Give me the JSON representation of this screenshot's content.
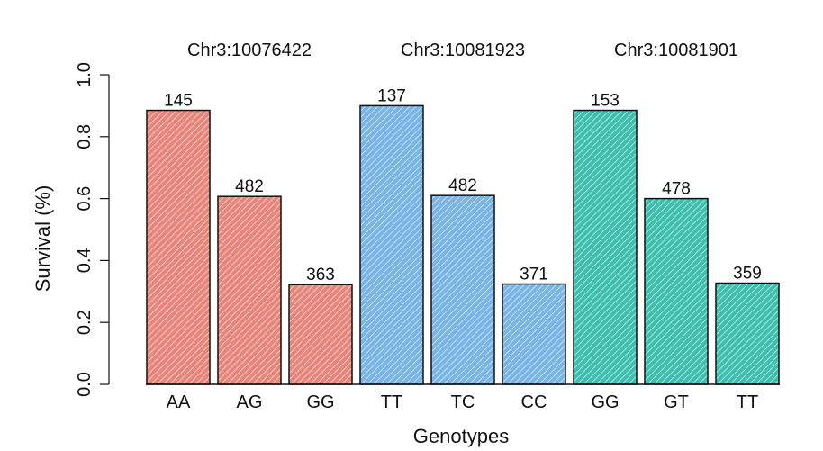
{
  "chart_data": {
    "type": "bar",
    "xlabel": "Genotypes",
    "ylabel": "Survival (%)",
    "ylim": [
      0,
      1.0
    ],
    "yticks": [
      "0.0",
      "0.2",
      "0.4",
      "0.6",
      "0.8",
      "1.0"
    ],
    "grid": false,
    "groups": [
      {
        "label": "Chr3:10076422",
        "color": "#e8857a",
        "bars": [
          {
            "genotype": "AA",
            "value": 0.885,
            "count": "145"
          },
          {
            "genotype": "AG",
            "value": 0.607,
            "count": "482"
          },
          {
            "genotype": "GG",
            "value": 0.322,
            "count": "363"
          }
        ]
      },
      {
        "label": "Chr3:10081923",
        "color": "#78b4e6",
        "bars": [
          {
            "genotype": "TT",
            "value": 0.9,
            "count": "137"
          },
          {
            "genotype": "TC",
            "value": 0.61,
            "count": "482"
          },
          {
            "genotype": "CC",
            "value": 0.324,
            "count": "371"
          }
        ]
      },
      {
        "label": "Chr3:10081901",
        "color": "#3dbfb0",
        "bars": [
          {
            "genotype": "GG",
            "value": 0.885,
            "count": "153"
          },
          {
            "genotype": "GT",
            "value": 0.6,
            "count": "478"
          },
          {
            "genotype": "TT",
            "value": 0.327,
            "count": "359"
          }
        ]
      }
    ]
  }
}
